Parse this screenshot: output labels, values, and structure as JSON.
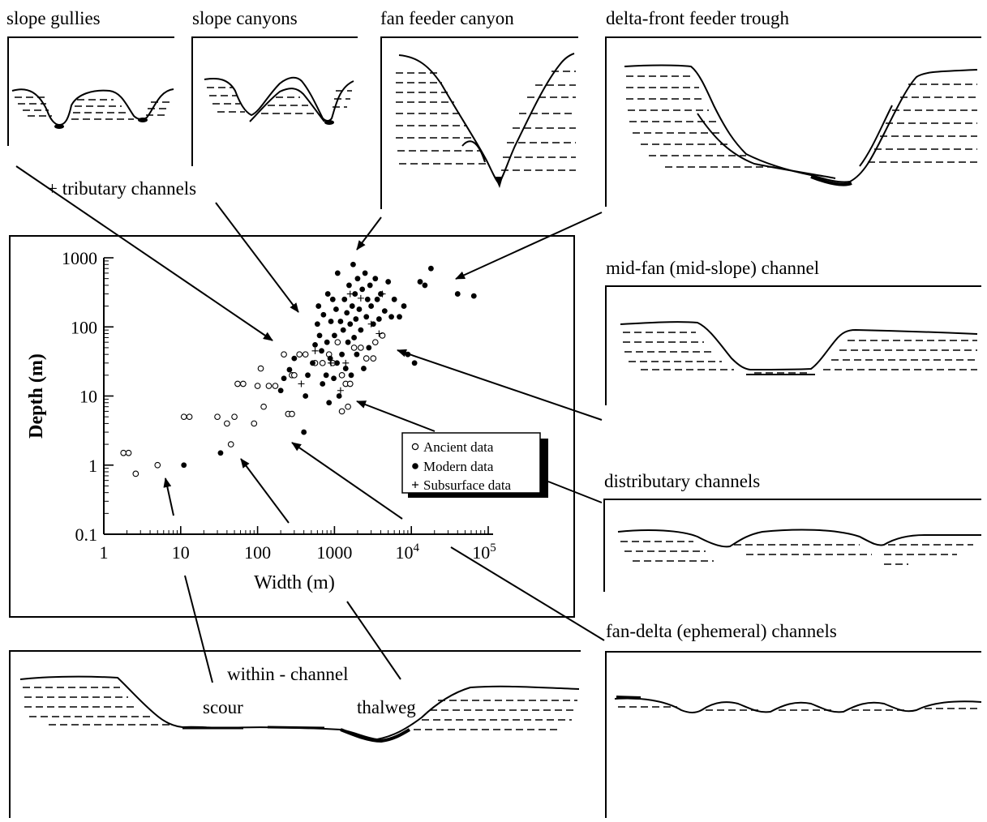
{
  "labels": {
    "slope_gullies": "slope gullies",
    "slope_canyons": "slope canyons",
    "fan_feeder_canyon": "fan feeder canyon",
    "delta_front_feeder_trough": "delta-front feeder trough",
    "tributary_channels": "+ tributary channels",
    "mid_fan_channel": "mid-fan (mid-slope) channel",
    "distributary_channels": "distributary channels",
    "fan_delta_channels": "fan-delta (ephemeral) channels",
    "within_channel": "within - channel",
    "scour": "scour",
    "thalweg": "thalweg"
  },
  "chart_data": {
    "type": "scatter",
    "xlabel": "Width (m)",
    "ylabel": "Depth (m)",
    "xscale": "log",
    "yscale": "log",
    "xlim": [
      1,
      100000
    ],
    "ylim": [
      0.1,
      1000
    ],
    "x_ticks": [
      "1",
      "10",
      "100",
      "1000",
      "10",
      "10"
    ],
    "x_tick_exponents": [
      "",
      "",
      "",
      "",
      "4",
      "5"
    ],
    "y_ticks": [
      "1000",
      "100",
      "10",
      "1",
      "0.1"
    ],
    "legend_position": "bottom-right",
    "series": [
      {
        "name": "Ancient data",
        "marker": "open-circle",
        "points": [
          [
            1.8,
            1.5
          ],
          [
            2.1,
            1.5
          ],
          [
            2.6,
            0.75
          ],
          [
            5,
            1
          ],
          [
            11,
            5
          ],
          [
            13,
            5
          ],
          [
            30,
            5
          ],
          [
            40,
            4
          ],
          [
            50,
            5
          ],
          [
            45,
            2
          ],
          [
            55,
            15
          ],
          [
            65,
            15
          ],
          [
            90,
            4
          ],
          [
            100,
            14
          ],
          [
            110,
            25
          ],
          [
            120,
            7
          ],
          [
            140,
            14
          ],
          [
            170,
            14
          ],
          [
            220,
            40
          ],
          [
            250,
            5.5
          ],
          [
            280,
            5.5
          ],
          [
            280,
            20
          ],
          [
            300,
            20
          ],
          [
            350,
            40
          ],
          [
            420,
            40
          ],
          [
            560,
            30
          ],
          [
            700,
            30
          ],
          [
            850,
            40
          ],
          [
            950,
            30
          ],
          [
            1100,
            60
          ],
          [
            1250,
            20
          ],
          [
            1400,
            15
          ],
          [
            1600,
            15
          ],
          [
            1500,
            7
          ],
          [
            1250,
            6
          ],
          [
            1800,
            50
          ],
          [
            2200,
            50
          ],
          [
            2600,
            35
          ],
          [
            3200,
            35
          ],
          [
            3400,
            60
          ],
          [
            4200,
            75
          ]
        ]
      },
      {
        "name": "Modern data",
        "marker": "filled-circle",
        "points": [
          [
            11,
            1
          ],
          [
            33,
            1.5
          ],
          [
            400,
            3
          ],
          [
            200,
            12
          ],
          [
            220,
            18
          ],
          [
            260,
            24
          ],
          [
            300,
            35
          ],
          [
            420,
            10
          ],
          [
            450,
            20
          ],
          [
            520,
            30
          ],
          [
            560,
            55
          ],
          [
            600,
            110
          ],
          [
            620,
            200
          ],
          [
            640,
            75
          ],
          [
            680,
            45
          ],
          [
            700,
            15
          ],
          [
            720,
            150
          ],
          [
            780,
            20
          ],
          [
            800,
            60
          ],
          [
            820,
            300
          ],
          [
            850,
            8
          ],
          [
            880,
            35
          ],
          [
            900,
            120
          ],
          [
            950,
            250
          ],
          [
            980,
            18
          ],
          [
            1000,
            75
          ],
          [
            1050,
            180
          ],
          [
            1080,
            30
          ],
          [
            1100,
            600
          ],
          [
            1150,
            10
          ],
          [
            1200,
            120
          ],
          [
            1250,
            40
          ],
          [
            1300,
            90
          ],
          [
            1350,
            250
          ],
          [
            1400,
            25
          ],
          [
            1450,
            160
          ],
          [
            1500,
            60
          ],
          [
            1550,
            400
          ],
          [
            1600,
            110
          ],
          [
            1650,
            20
          ],
          [
            1700,
            200
          ],
          [
            1750,
            800
          ],
          [
            1800,
            70
          ],
          [
            1850,
            300
          ],
          [
            1900,
            130
          ],
          [
            1950,
            40
          ],
          [
            2000,
            500
          ],
          [
            2100,
            180
          ],
          [
            2200,
            90
          ],
          [
            2300,
            350
          ],
          [
            2400,
            25
          ],
          [
            2500,
            600
          ],
          [
            2600,
            140
          ],
          [
            2700,
            250
          ],
          [
            2800,
            50
          ],
          [
            2900,
            400
          ],
          [
            3000,
            200
          ],
          [
            3200,
            110
          ],
          [
            3400,
            500
          ],
          [
            3600,
            250
          ],
          [
            3800,
            130
          ],
          [
            4000,
            300
          ],
          [
            4500,
            170
          ],
          [
            5000,
            450
          ],
          [
            5500,
            140
          ],
          [
            6000,
            250
          ],
          [
            7000,
            140
          ],
          [
            8000,
            200
          ],
          [
            9000,
            40
          ],
          [
            11000,
            30
          ],
          [
            13000,
            450
          ],
          [
            15000,
            400
          ],
          [
            18000,
            700
          ],
          [
            40000,
            300
          ],
          [
            65000,
            280
          ]
        ]
      },
      {
        "name": "Subsurface data",
        "marker": "plus",
        "points": [
          [
            370,
            15
          ],
          [
            560,
            45
          ],
          [
            900,
            30
          ],
          [
            1200,
            12
          ],
          [
            1400,
            30
          ],
          [
            1600,
            300
          ],
          [
            2200,
            260
          ],
          [
            3000,
            110
          ],
          [
            3800,
            80
          ],
          [
            4200,
            300
          ]
        ]
      }
    ]
  }
}
